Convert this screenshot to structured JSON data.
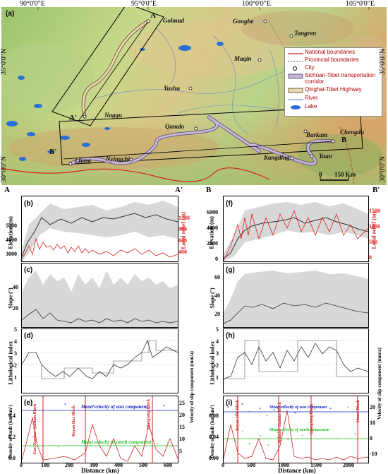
{
  "map": {
    "panel_label": "(a)",
    "longitudes": [
      "90°0'0\"E",
      "95°0'0\"E",
      "100°0'0\"E",
      "105°0'0\"E"
    ],
    "latitudes": [
      "35°0'0\"N",
      "30°0'0\"N"
    ],
    "cities": [
      "Golmud",
      "Gonghe",
      "Tongren",
      "Maqin",
      "Yushu",
      "Nagqu",
      "Qamdo",
      "Barkam",
      "Chengdu",
      "Lhasa",
      "Nyingchi",
      "Kangding",
      "Yaan"
    ],
    "points": [
      "A",
      "A'",
      "B",
      "B'"
    ],
    "scale": {
      "zero": "0",
      "end": "150 Km"
    },
    "legend": [
      "National boundaries",
      "Provincial boundaries",
      "City",
      "Sichuan-Tibet transportation corridor",
      "Qinghai-Tibet Highway",
      "River",
      "Lake"
    ]
  },
  "profiles": {
    "left_start": "A",
    "left_end": "A'",
    "right_start": "B",
    "right_end": "B'"
  },
  "left": {
    "b": {
      "label": "(b)",
      "ylabel": "Elevation (m)",
      "y2label": "Local relief (m)",
      "yticks": [
        "3000",
        "4000",
        "5000"
      ],
      "y2ticks": [
        "400",
        "600",
        "900",
        "1200"
      ]
    },
    "c": {
      "label": "(c)",
      "ylabel": "Slope (°)",
      "yticks": [
        "20",
        "40"
      ]
    },
    "d": {
      "label": "(d)",
      "ylabel": "Lithological index",
      "yticks": [
        "1",
        "2",
        "3",
        "4",
        "5"
      ]
    },
    "e": {
      "label": "(e)",
      "ylabel": "Density of fault (km/km²)",
      "y2label": "Velocity of slip component (mm/a)",
      "yticks": [
        "0.0",
        "0.2",
        "0.4"
      ],
      "y2ticks": [
        "5",
        "10",
        "15",
        "20",
        "25"
      ],
      "xticks": [
        "0",
        "100",
        "200",
        "300",
        "400",
        "500",
        "600"
      ],
      "xlabel": "Distance (km)",
      "blocks": [
        "East Kunlun-Qaidam Block",
        "Bayan Har Block",
        "Qiangtang Block"
      ],
      "east": "Mean velocity of east component",
      "north": "Mean velocity of north component"
    }
  },
  "right": {
    "f": {
      "label": "(f)",
      "ylabel": "Elevation (m)",
      "y2label": "Local relief (m)",
      "yticks": [
        "0",
        "2000",
        "4000",
        "6000"
      ],
      "y2ticks": [
        "0",
        "500",
        "1000",
        "1500"
      ]
    },
    "g": {
      "label": "(g)",
      "ylabel": "Slope (°)",
      "yticks": [
        "20",
        "40",
        "60"
      ]
    },
    "h": {
      "label": "(h)",
      "ylabel": "Lithological index",
      "yticks": [
        "1",
        "2",
        "3",
        "4",
        "5"
      ],
      "y2label": "Velocity of slip component (mm/a)"
    },
    "i": {
      "label": "(i)",
      "ylabel": "Density of fault (km/km²)",
      "y2label": "Velocity of slip component (mm/a)",
      "yticks": [
        "0.00",
        "0.04",
        "0.08"
      ],
      "y2ticks": [
        "-10",
        "0",
        "10",
        "20"
      ],
      "xticks": [
        "0",
        "500",
        "1000",
        "1500",
        "2000"
      ],
      "xlabel": "Distance (km)",
      "blocks": [
        "Bayan Har Block",
        "Sichuan-Yunnan Block",
        "Qiangtang Block",
        "Lhasa Block"
      ],
      "east": "Mean velocity of east component",
      "north": "Mean velocity of north component"
    }
  },
  "colors": {
    "elevation": "#333333",
    "relief": "#e02020",
    "gray": "#d8d8d8",
    "boundary": "#d02020",
    "east": "#1020c0",
    "north": "#20c020",
    "highway": "#e8d8b0",
    "corridor": "#c8b8d8"
  }
}
